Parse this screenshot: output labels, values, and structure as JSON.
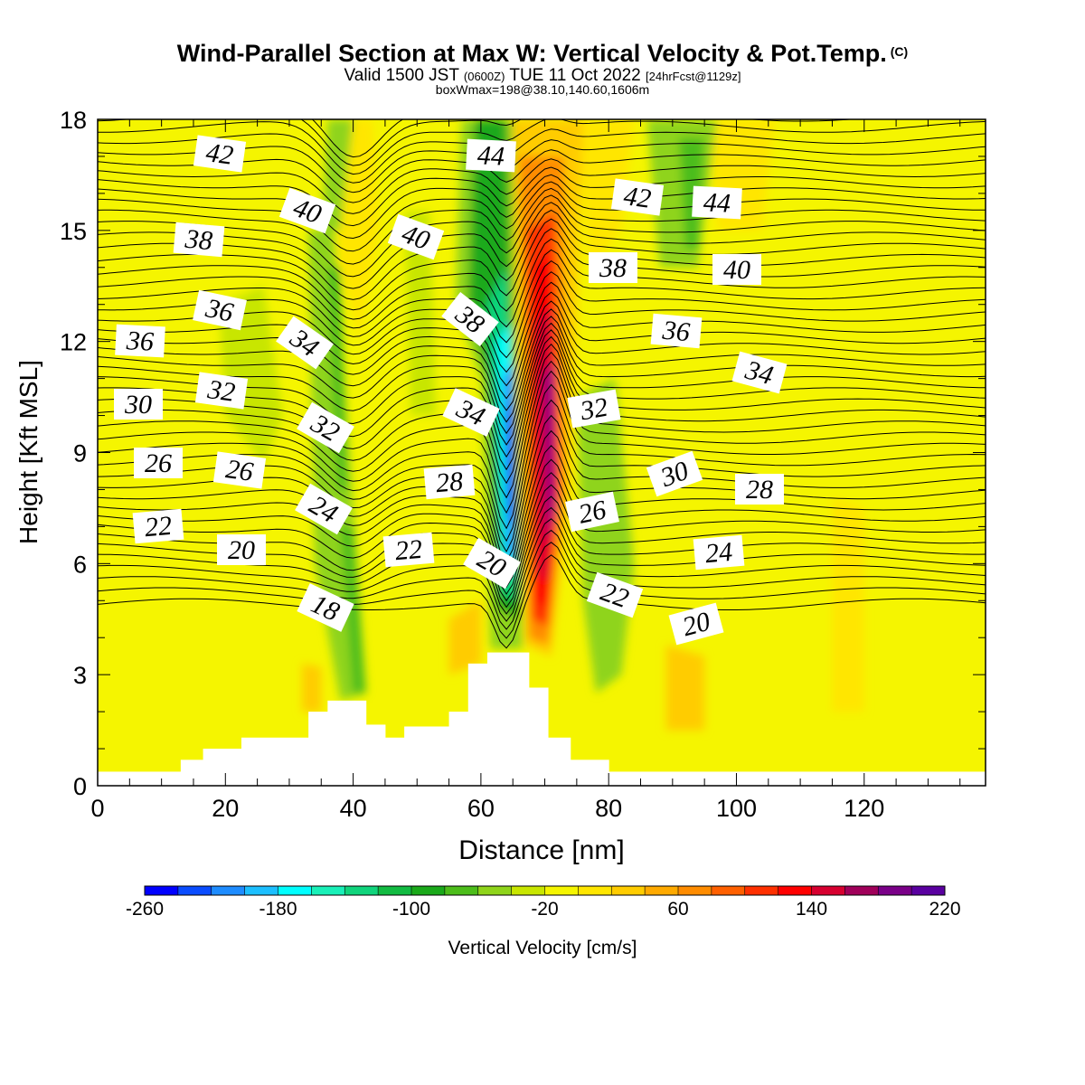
{
  "title": {
    "main": "Wind-Parallel Section at Max W: Vertical Velocity & Pot.Temp.",
    "copyright": "(C)",
    "valid_prefix": "Valid 1500 JST",
    "valid_utc": "(0600Z)",
    "valid_date": "TUE 11 Oct 2022",
    "forecast": "[24hrFcst@1129z]",
    "box_info": "boxWmax=198@38.10,140.60,1606m"
  },
  "chart_data": {
    "type": "contour",
    "xlabel": "Distance [nm]",
    "ylabel": "Height [Kft MSL]",
    "xlim": [
      0,
      139
    ],
    "ylim": [
      0,
      18
    ],
    "x_ticks": [
      0,
      20,
      40,
      60,
      80,
      100,
      120
    ],
    "y_ticks": [
      0,
      3,
      6,
      9,
      12,
      15,
      18
    ],
    "colorbar": {
      "label": "Vertical Velocity [cm/s]",
      "tick_labels": [
        "-260",
        "-180",
        "-100",
        "-20",
        "60",
        "140",
        "220"
      ],
      "colors": [
        "#0000ff",
        "#0a4cff",
        "#1e8cff",
        "#1cbfff",
        "#00ffff",
        "#19f0b8",
        "#10d47c",
        "#12bb42",
        "#1aa91a",
        "#4cbd1a",
        "#8fd41a",
        "#c8e600",
        "#f5f500",
        "#ffe600",
        "#ffcc00",
        "#ffaa00",
        "#ff8c00",
        "#ff6000",
        "#ff3000",
        "#ff0000",
        "#d70030",
        "#a0005a",
        "#7a0088",
        "#5a00a0"
      ]
    },
    "potential_temperature_labels": [
      "42",
      "44",
      "40",
      "40",
      "42",
      "44",
      "38",
      "38",
      "40",
      "36",
      "38",
      "34",
      "36",
      "36",
      "34",
      "30",
      "32",
      "32",
      "34",
      "32",
      "26",
      "26",
      "28",
      "26",
      "30",
      "28",
      "22",
      "24",
      "20",
      "22",
      "20",
      "24",
      "18",
      "22",
      "20"
    ],
    "max_w_box": {
      "w": 198,
      "lat": 38.1,
      "lon": 140.6,
      "height_m": 1606
    },
    "terrain_steps": [
      {
        "x0": 0,
        "x1": 13,
        "h": 0.38
      },
      {
        "x0": 13,
        "x1": 16.5,
        "h": 0.7
      },
      {
        "x0": 16.5,
        "x1": 22.5,
        "h": 1.0
      },
      {
        "x0": 22.5,
        "x1": 33,
        "h": 1.3
      },
      {
        "x0": 33,
        "x1": 36,
        "h": 2.0
      },
      {
        "x0": 36,
        "x1": 42,
        "h": 2.3
      },
      {
        "x0": 42,
        "x1": 45,
        "h": 1.65
      },
      {
        "x0": 45,
        "x1": 48,
        "h": 1.3
      },
      {
        "x0": 48,
        "x1": 55,
        "h": 1.6
      },
      {
        "x0": 55,
        "x1": 58,
        "h": 2.0
      },
      {
        "x0": 58,
        "x1": 61,
        "h": 3.3
      },
      {
        "x0": 61,
        "x1": 67.5,
        "h": 3.6
      },
      {
        "x0": 67.5,
        "x1": 70.5,
        "h": 2.65
      },
      {
        "x0": 70.5,
        "x1": 74,
        "h": 1.3
      },
      {
        "x0": 74,
        "x1": 80,
        "h": 0.7
      },
      {
        "x0": 80,
        "x1": 139,
        "h": 0.38
      }
    ],
    "w_features": [
      {
        "x": 64.5,
        "y": 10.5,
        "value": -260
      },
      {
        "x": 64,
        "y": 6.5,
        "value": -240
      },
      {
        "x": 71,
        "y": 9.0,
        "value": 220
      },
      {
        "x": 69,
        "y": 13.0,
        "value": 150
      },
      {
        "x": 38,
        "y": 6.0,
        "value": -60
      },
      {
        "x": 35.5,
        "y": 13.0,
        "value": -60
      },
      {
        "x": 92,
        "y": 16.5,
        "value": -60
      },
      {
        "x": 78,
        "y": 6.0,
        "value": -40
      },
      {
        "x": 25,
        "y": 12.0,
        "value": -20
      }
    ]
  },
  "colors": {
    "background": "#f5f500",
    "terrain": "#ffffff"
  }
}
